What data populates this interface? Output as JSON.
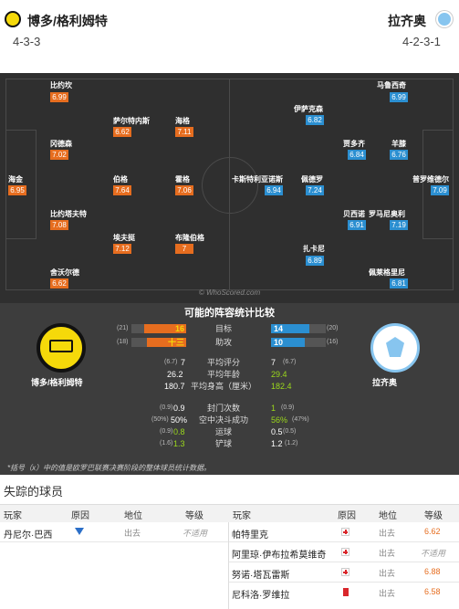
{
  "home": {
    "name": "博多/格利姆特",
    "formation": "4-3-3",
    "color": "#f5d90a"
  },
  "away": {
    "name": "拉齐奥",
    "formation": "4-2-3-1",
    "color": "#87c5ef"
  },
  "pitch": {
    "watermark": "© WhoScored.com",
    "home_players": [
      {
        "name": "比约坎",
        "rating": "6.99"
      },
      {
        "name": "萨尔特内斯",
        "rating": "6.62"
      },
      {
        "name": "海格",
        "rating": "7.11"
      },
      {
        "name": "冈德森",
        "rating": "7.02"
      },
      {
        "name": "海金",
        "rating": "6.95"
      },
      {
        "name": "伯格",
        "rating": "7.64"
      },
      {
        "name": "霍格",
        "rating": "7.06"
      },
      {
        "name": "比约塔夫特",
        "rating": "7.08"
      },
      {
        "name": "埃夫挺",
        "rating": "7.12"
      },
      {
        "name": "布隆伯格",
        "rating": "7"
      },
      {
        "name": "舍沃尔德",
        "rating": "6.62"
      }
    ],
    "away_players": [
      {
        "name": "马鲁西奇",
        "rating": "6.99"
      },
      {
        "name": "伊萨克森",
        "rating": "6.82"
      },
      {
        "name": "贾多齐",
        "rating": "6.84"
      },
      {
        "name": "羊膝",
        "rating": "6.76"
      },
      {
        "name": "卡斯特利亚诺斯",
        "rating": "6.94"
      },
      {
        "name": "佩德罗",
        "rating": "7.24"
      },
      {
        "name": "普罗维德尔",
        "rating": "7.09"
      },
      {
        "name": "贝西诺",
        "rating": "6.91"
      },
      {
        "name": "罗马尼奥利",
        "rating": "7.19"
      },
      {
        "name": "扎卡尼",
        "rating": "6.89"
      },
      {
        "name": "佩莱格里尼",
        "rating": "6.81"
      }
    ]
  },
  "stats": {
    "title": "可能的阵容统计比较",
    "note": "*括号（x）中的值是欧罗巴联赛决赛阶段的整体球员统计数据。",
    "bars": [
      {
        "label": "目标",
        "home": "16",
        "home_sub": "(21)",
        "away": "14",
        "away_sub": "(20)",
        "home_pct": 0.76,
        "away_pct": 0.7
      },
      {
        "label": "助攻",
        "home": "十三",
        "home_sub": "(18)",
        "away": "10",
        "away_sub": "(16)",
        "home_pct": 0.72,
        "away_pct": 0.62
      }
    ],
    "rows1": [
      {
        "label": "平均评分",
        "home": "7",
        "home_sub": "(6.7)",
        "away": "7",
        "away_sub": "(6.7)"
      },
      {
        "label": "平均年龄",
        "home": "26.2",
        "home_sub": "",
        "away": "29.4",
        "away_sub": ""
      },
      {
        "label": "平均身高（厘米）",
        "home": "180.7",
        "home_sub": "",
        "away": "182.4",
        "away_sub": ""
      }
    ],
    "rows2": [
      {
        "label": "封门次数",
        "home": "0.9",
        "home_sub": "(0.9)",
        "away": "1",
        "away_sub": "(0.9)"
      },
      {
        "label": "空中决斗成功",
        "home": "50%",
        "home_sub": "(50%)",
        "away": "56%",
        "away_sub": "(47%)"
      },
      {
        "label": "运球",
        "home": "0.8",
        "home_sub": "(0.9)",
        "away": "0.5",
        "away_sub": "(0.5)"
      },
      {
        "label": "铲球",
        "home": "1.3",
        "home_sub": "(1.6)",
        "away": "1.2",
        "away_sub": "(1.2)"
      }
    ]
  },
  "missing": {
    "title": "失踪的球员",
    "headers": {
      "player": "玩家",
      "reason": "原因",
      "status": "地位",
      "grade": "等级"
    },
    "home": [
      {
        "player": "丹尼尔·巴西",
        "reason_icon": "arrow-down-icon",
        "status": "出去",
        "grade": "不适用"
      }
    ],
    "away": [
      {
        "player": "帕特里克",
        "reason_icon": "injury-cross-icon",
        "status": "出去",
        "grade": "6.62"
      },
      {
        "player": "阿里琼·伊布拉希莫维奇",
        "reason_icon": "injury-cross-icon",
        "status": "出去",
        "grade": "不适用"
      },
      {
        "player": "努诺·塔瓦雷斯",
        "reason_icon": "injury-cross-icon",
        "status": "出去",
        "grade": "6.88"
      },
      {
        "player": "尼科洛·罗维拉",
        "reason_icon": "red-card-icon",
        "status": "出去",
        "grade": "6.58"
      }
    ]
  }
}
